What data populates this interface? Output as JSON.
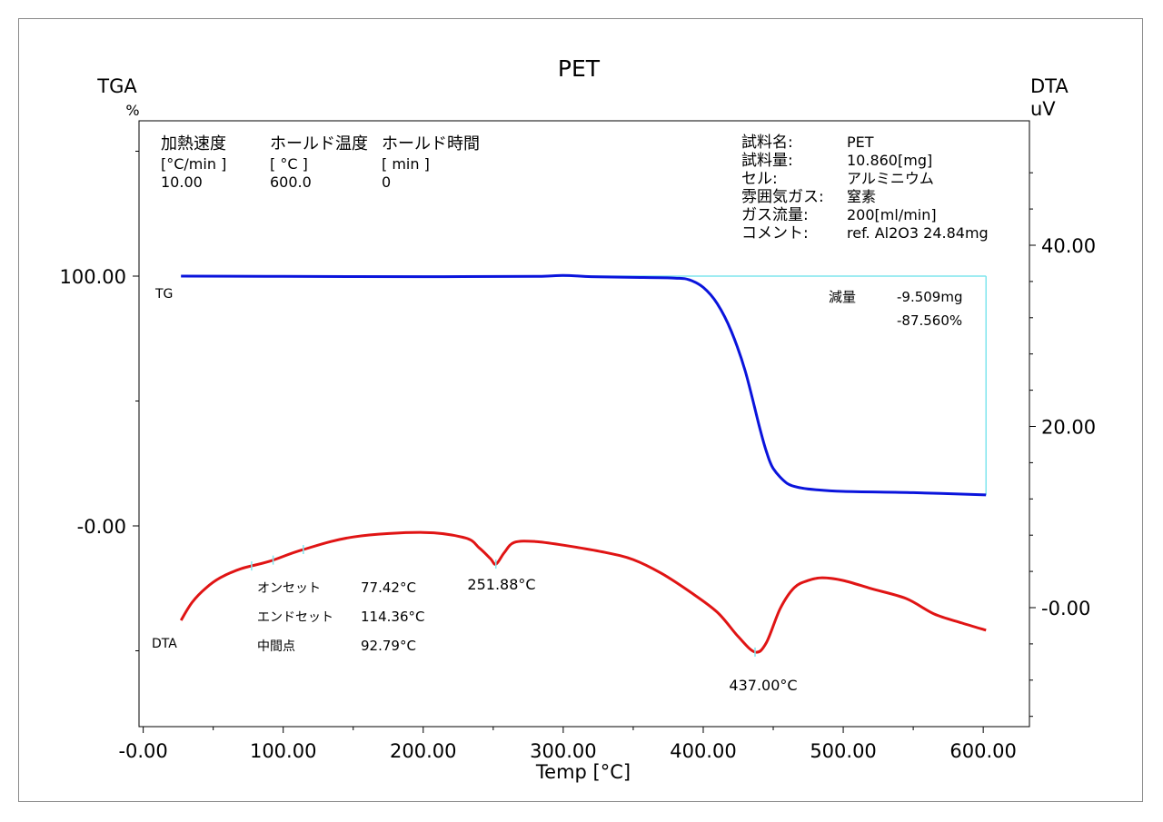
{
  "chart_data": {
    "type": "line",
    "title": "PET",
    "xlabel": "Temp [°C]",
    "y_left_label": "TGA",
    "y_left_unit": "%",
    "y_right_label": "DTA",
    "y_right_unit": "uV",
    "xlim": [
      -3,
      633
    ],
    "x_ticks": [
      "-0.00",
      "100.00",
      "200.00",
      "300.00",
      "400.00",
      "500.00",
      "600.00"
    ],
    "x_tick_values": [
      0,
      100,
      200,
      300,
      400,
      500,
      600
    ],
    "y_left_ticks": [
      "100.00",
      "-0.00"
    ],
    "y_left_tick_values": [
      100,
      0
    ],
    "y_right_ticks": [
      "40.00",
      "20.00",
      "-0.00"
    ],
    "y_right_tick_values": [
      40,
      20,
      0
    ],
    "colors": {
      "tg": "#0a14dc",
      "dta": "#e01414",
      "baseline": "#7fe6ee",
      "axis": "#000000",
      "frame": "#8a8a8a"
    },
    "conditions": {
      "headers": [
        "加熱速度",
        "ホールド温度",
        "ホールド時間"
      ],
      "units": [
        "[°C/min ]",
        "[ °C ]",
        "[ min ]"
      ],
      "values": [
        "10.00",
        "600.0",
        "0"
      ]
    },
    "sample_info": [
      {
        "label": "試料名:",
        "value": "PET"
      },
      {
        "label": "試料量:",
        "value": "10.860[mg]"
      },
      {
        "label": "セル:",
        "value": "アルミニウム"
      },
      {
        "label": "雰囲気ガス:",
        "value": "窒素"
      },
      {
        "label": "ガス流量:",
        "value": "200[ml/min]"
      },
      {
        "label": "コメント:",
        "value": "ref. Al2O3 24.84mg"
      }
    ],
    "weight_loss": {
      "label": "減量",
      "mg": "-9.509mg",
      "percent": "-87.560%"
    },
    "transition": {
      "onset_label": "オンセット",
      "onset": "77.42°C",
      "endset_label": "エンドセット",
      "endset": "114.36°C",
      "midpoint_label": "中間点",
      "midpoint": "92.79°C"
    },
    "peak_labels": [
      "251.88°C",
      "437.00°C"
    ],
    "series": [
      {
        "name": "TG",
        "axis": "left",
        "x": [
          27,
          100,
          200,
          280,
          300,
          320,
          350,
          380,
          390,
          400,
          410,
          420,
          430,
          440,
          445,
          450,
          460,
          470,
          480,
          500,
          550,
          602
        ],
        "y": [
          100,
          99.9,
          99.8,
          99.9,
          100.3,
          99.8,
          99.5,
          99.2,
          98.5,
          95.5,
          89,
          78,
          62,
          40,
          30,
          23,
          17,
          15.2,
          14.5,
          13.8,
          13.3,
          12.4
        ]
      },
      {
        "name": "DTA",
        "axis": "right",
        "x": [
          27,
          35,
          45,
          55,
          70,
          90,
          114,
          150,
          200,
          230,
          240,
          248,
          252,
          258,
          265,
          280,
          300,
          330,
          350,
          370,
          390,
          410,
          425,
          437,
          445,
          455,
          465,
          475,
          485,
          500,
          520,
          545,
          565,
          585,
          602
        ],
        "y": [
          -1.4,
          0.6,
          2.2,
          3.3,
          4.3,
          5.1,
          6.4,
          7.8,
          8.3,
          7.7,
          6.6,
          5.4,
          4.8,
          6.1,
          7.2,
          7.3,
          6.9,
          6.1,
          5.3,
          3.8,
          1.8,
          -0.5,
          -3.2,
          -4.9,
          -3.9,
          -0.1,
          2.2,
          3.0,
          3.3,
          3.0,
          2.1,
          1.0,
          -0.7,
          -1.7,
          -2.5
        ]
      }
    ]
  }
}
